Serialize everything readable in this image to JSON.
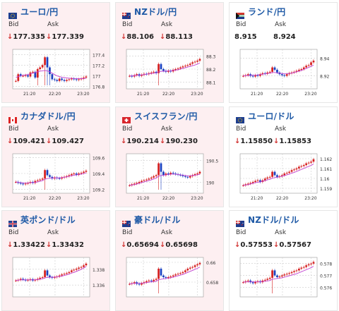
{
  "panels": [
    {
      "name": "ユーロ/円",
      "flag": "eu",
      "bid_label": "Bid",
      "ask_label": "Ask",
      "bid": "177.335",
      "ask": "177.339",
      "arrow": "↓",
      "chart": {
        "type": "candlestick",
        "ylim": [
          176.75,
          177.5
        ],
        "yticks": [
          "177.4",
          "177.2",
          "177",
          "176.8"
        ],
        "ytick_values": [
          177.4,
          177.2,
          177.0,
          176.8
        ],
        "xticks": [
          "21:20",
          "22:20",
          "23:20"
        ],
        "trend": [
          0.15,
          0.35,
          0.3,
          0.3,
          0.32,
          0.28,
          0.4,
          0.42,
          0.25,
          0.5,
          0.55,
          0.62,
          0.85,
          0.55,
          0.35,
          0.2,
          0.18,
          0.15,
          0.22,
          0.18,
          0.15,
          0.18,
          0.2,
          0.22,
          0.2,
          0.18,
          0.2,
          0.22,
          0.25,
          0.28
        ],
        "ma": [
          0.25,
          0.28,
          0.3,
          0.32,
          0.33,
          0.34,
          0.36,
          0.38,
          0.4,
          0.42,
          0.44,
          0.45,
          0.46,
          0.45,
          0.42,
          0.38,
          0.34,
          0.3,
          0.28,
          0.26,
          0.25,
          0.24,
          0.23,
          0.23,
          0.22,
          0.22,
          0.22,
          0.22,
          0.22,
          0.23
        ]
      }
    },
    {
      "name": "NZドル/円",
      "flag": "nz",
      "bid_label": "Bid",
      "ask_label": "Ask",
      "bid": "88.106",
      "ask": "88.113",
      "arrow": "↓",
      "chart": {
        "type": "candlestick",
        "ylim": [
          88.05,
          88.35
        ],
        "yticks": [
          "88.3",
          "88.2",
          "88.1"
        ],
        "ytick_values": [
          88.3,
          88.2,
          88.1
        ],
        "xticks": [
          "21:20",
          "22:20",
          "23:20"
        ],
        "trend": [
          0.3,
          0.28,
          0.32,
          0.35,
          0.3,
          0.33,
          0.36,
          0.35,
          0.38,
          0.4,
          0.42,
          0.38,
          0.65,
          0.5,
          0.45,
          0.42,
          0.45,
          0.43,
          0.48,
          0.5,
          0.52,
          0.55,
          0.58,
          0.6,
          0.62,
          0.66,
          0.7,
          0.72,
          0.75,
          0.8
        ],
        "ma": [
          0.3,
          0.3,
          0.31,
          0.32,
          0.32,
          0.33,
          0.34,
          0.35,
          0.36,
          0.37,
          0.38,
          0.39,
          0.42,
          0.43,
          0.44,
          0.44,
          0.45,
          0.45,
          0.46,
          0.47,
          0.48,
          0.5,
          0.52,
          0.54,
          0.56,
          0.58,
          0.6,
          0.62,
          0.65,
          0.68
        ]
      }
    },
    {
      "name": "ランド/円",
      "flag": "za",
      "bid_label": "Bid",
      "ask_label": "Ask",
      "bid": "8.915",
      "ask": "8.924",
      "arrow": "",
      "chart": {
        "type": "candlestick",
        "ylim": [
          8.905,
          8.95
        ],
        "yticks": [
          "8.94",
          "8.92"
        ],
        "ytick_values": [
          8.94,
          8.92
        ],
        "xticks": [
          "21:20",
          "22:20",
          "23:20"
        ],
        "trend": [
          0.3,
          0.32,
          0.35,
          0.3,
          0.28,
          0.32,
          0.3,
          0.35,
          0.38,
          0.36,
          0.4,
          0.42,
          0.55,
          0.48,
          0.4,
          0.35,
          0.32,
          0.3,
          0.35,
          0.38,
          0.4,
          0.42,
          0.45,
          0.48,
          0.5,
          0.55,
          0.6,
          0.62,
          0.7,
          0.75
        ],
        "ma": [
          0.3,
          0.31,
          0.31,
          0.32,
          0.32,
          0.32,
          0.33,
          0.34,
          0.35,
          0.36,
          0.37,
          0.38,
          0.4,
          0.4,
          0.39,
          0.38,
          0.37,
          0.36,
          0.36,
          0.37,
          0.38,
          0.4,
          0.42,
          0.44,
          0.46,
          0.49,
          0.52,
          0.55,
          0.58,
          0.62
        ]
      }
    },
    {
      "name": "カナダドル/円",
      "flag": "ca",
      "bid_label": "Bid",
      "ask_label": "Ask",
      "bid": "109.421",
      "ask": "109.427",
      "arrow": "↓",
      "chart": {
        "type": "candlestick",
        "ylim": [
          109.15,
          109.65
        ],
        "yticks": [
          "109.6",
          "109.4",
          "109.2"
        ],
        "ytick_values": [
          109.6,
          109.4,
          109.2
        ],
        "xticks": [
          "21:20",
          "22:20",
          "23:20"
        ],
        "trend": [
          0.25,
          0.22,
          0.2,
          0.18,
          0.2,
          0.22,
          0.25,
          0.22,
          0.28,
          0.3,
          0.32,
          0.35,
          0.6,
          0.45,
          0.4,
          0.35,
          0.38,
          0.36,
          0.35,
          0.38,
          0.4,
          0.42,
          0.45,
          0.48,
          0.5,
          0.46,
          0.5,
          0.52,
          0.55,
          0.58
        ],
        "ma": [
          0.25,
          0.24,
          0.23,
          0.22,
          0.22,
          0.22,
          0.23,
          0.23,
          0.24,
          0.25,
          0.27,
          0.29,
          0.33,
          0.35,
          0.36,
          0.37,
          0.37,
          0.37,
          0.37,
          0.38,
          0.39,
          0.4,
          0.42,
          0.43,
          0.45,
          0.46,
          0.47,
          0.48,
          0.5,
          0.52
        ]
      }
    },
    {
      "name": "スイスフラン/円",
      "flag": "ch",
      "bid_label": "Bid",
      "ask_label": "Ask",
      "bid": "190.214",
      "ask": "190.230",
      "arrow": "↓",
      "chart": {
        "type": "candlestick",
        "ylim": [
          189.75,
          190.65
        ],
        "yticks": [
          "190.5",
          "190"
        ],
        "ytick_values": [
          190.5,
          190.0
        ],
        "xticks": [
          "21:20",
          "22:20",
          "23:20"
        ],
        "trend": [
          0.15,
          0.18,
          0.2,
          0.22,
          0.25,
          0.28,
          0.3,
          0.32,
          0.35,
          0.38,
          0.42,
          0.45,
          0.8,
          0.55,
          0.45,
          0.5,
          0.48,
          0.52,
          0.5,
          0.48,
          0.46,
          0.45,
          0.42,
          0.4,
          0.38,
          0.42,
          0.45,
          0.48,
          0.5,
          0.55
        ],
        "ma": [
          0.15,
          0.16,
          0.17,
          0.19,
          0.21,
          0.23,
          0.25,
          0.27,
          0.29,
          0.31,
          0.34,
          0.36,
          0.42,
          0.44,
          0.45,
          0.46,
          0.47,
          0.48,
          0.48,
          0.48,
          0.47,
          0.46,
          0.45,
          0.44,
          0.43,
          0.43,
          0.44,
          0.45,
          0.46,
          0.48
        ]
      }
    },
    {
      "name": "ユーロ/ドル",
      "flag": "eu2",
      "bid_label": "Bid",
      "ask_label": "Ask",
      "bid": "1.15850",
      "ask": "1.15853",
      "arrow": "↓",
      "chart": {
        "type": "candlestick",
        "ylim": [
          1.1585,
          1.1625
        ],
        "yticks": [
          "1.162",
          "1.161",
          "1.16",
          "1.159"
        ],
        "ytick_values": [
          1.162,
          1.161,
          1.16,
          1.159
        ],
        "xticks": [
          "21:20",
          "22:20",
          "23:20"
        ],
        "trend": [
          0.15,
          0.18,
          0.2,
          0.22,
          0.25,
          0.28,
          0.3,
          0.25,
          0.3,
          0.35,
          0.38,
          0.4,
          0.55,
          0.45,
          0.4,
          0.42,
          0.45,
          0.5,
          0.52,
          0.55,
          0.6,
          0.62,
          0.65,
          0.7,
          0.72,
          0.75,
          0.8,
          0.82,
          0.85,
          0.92
        ],
        "ma": [
          0.15,
          0.16,
          0.17,
          0.19,
          0.21,
          0.23,
          0.24,
          0.25,
          0.27,
          0.29,
          0.31,
          0.33,
          0.36,
          0.38,
          0.39,
          0.4,
          0.42,
          0.44,
          0.46,
          0.48,
          0.51,
          0.53,
          0.56,
          0.59,
          0.62,
          0.65,
          0.68,
          0.71,
          0.74,
          0.78
        ]
      }
    },
    {
      "name": "英ポンド/ドル",
      "flag": "gb",
      "bid_label": "Bid",
      "ask_label": "Ask",
      "bid": "1.33422",
      "ask": "1.33432",
      "arrow": "↓",
      "chart": {
        "type": "candlestick",
        "ylim": [
          1.3345,
          1.3395
        ],
        "yticks": [
          "1.338",
          "1.336"
        ],
        "ytick_values": [
          1.338,
          1.336
        ],
        "xticks": [],
        "trend": [
          0.4,
          0.42,
          0.45,
          0.43,
          0.4,
          0.42,
          0.44,
          0.4,
          0.42,
          0.45,
          0.48,
          0.5,
          0.7,
          0.55,
          0.5,
          0.48,
          0.5,
          0.52,
          0.55,
          0.58,
          0.6,
          0.62,
          0.65,
          0.7,
          0.72,
          0.75,
          0.78,
          0.8,
          0.85,
          0.9
        ],
        "ma": [
          0.4,
          0.41,
          0.42,
          0.42,
          0.42,
          0.42,
          0.42,
          0.42,
          0.42,
          0.43,
          0.44,
          0.45,
          0.48,
          0.49,
          0.5,
          0.5,
          0.5,
          0.51,
          0.52,
          0.53,
          0.55,
          0.57,
          0.59,
          0.62,
          0.64,
          0.67,
          0.7,
          0.73,
          0.77,
          0.81
        ]
      }
    },
    {
      "name": "豪ドル/ドル",
      "flag": "au",
      "bid_label": "Bid",
      "ask_label": "Ask",
      "bid": "0.65694",
      "ask": "0.65698",
      "arrow": "↓",
      "chart": {
        "type": "candlestick",
        "ylim": [
          0.6565,
          0.6605
        ],
        "yticks": [
          "0.66",
          "0.658"
        ],
        "ytick_values": [
          0.66,
          0.658
        ],
        "xticks": [],
        "trend": [
          0.3,
          0.32,
          0.35,
          0.3,
          0.28,
          0.32,
          0.35,
          0.38,
          0.4,
          0.38,
          0.42,
          0.45,
          0.75,
          0.55,
          0.5,
          0.48,
          0.5,
          0.52,
          0.55,
          0.58,
          0.6,
          0.62,
          0.65,
          0.7,
          0.75,
          0.78,
          0.8,
          0.85,
          0.88,
          0.92
        ],
        "ma": [
          0.3,
          0.31,
          0.32,
          0.32,
          0.32,
          0.32,
          0.33,
          0.34,
          0.35,
          0.36,
          0.37,
          0.38,
          0.42,
          0.44,
          0.45,
          0.46,
          0.47,
          0.48,
          0.5,
          0.52,
          0.54,
          0.56,
          0.58,
          0.61,
          0.64,
          0.67,
          0.7,
          0.73,
          0.76,
          0.8
        ]
      }
    },
    {
      "name": "NZドル/ドル",
      "flag": "nz2",
      "bid_label": "Bid",
      "ask_label": "Ask",
      "bid": "0.57553",
      "ask": "0.57567",
      "arrow": "↓",
      "chart": {
        "type": "candlestick",
        "ylim": [
          0.5752,
          0.5785
        ],
        "yticks": [
          "0.578",
          "0.577",
          "0.576"
        ],
        "ytick_values": [
          0.578,
          0.577,
          0.576
        ],
        "xticks": [],
        "trend": [
          0.35,
          0.38,
          0.4,
          0.35,
          0.32,
          0.36,
          0.38,
          0.35,
          0.4,
          0.42,
          0.45,
          0.48,
          0.7,
          0.55,
          0.5,
          0.52,
          0.55,
          0.58,
          0.6,
          0.62,
          0.65,
          0.68,
          0.7,
          0.75,
          0.78,
          0.8,
          0.85,
          0.88,
          0.9,
          0.95
        ],
        "ma": [
          0.35,
          0.36,
          0.36,
          0.36,
          0.36,
          0.36,
          0.36,
          0.36,
          0.37,
          0.38,
          0.39,
          0.4,
          0.44,
          0.45,
          0.46,
          0.47,
          0.48,
          0.5,
          0.52,
          0.54,
          0.56,
          0.58,
          0.6,
          0.63,
          0.66,
          0.69,
          0.72,
          0.75,
          0.78,
          0.82
        ]
      }
    }
  ]
}
